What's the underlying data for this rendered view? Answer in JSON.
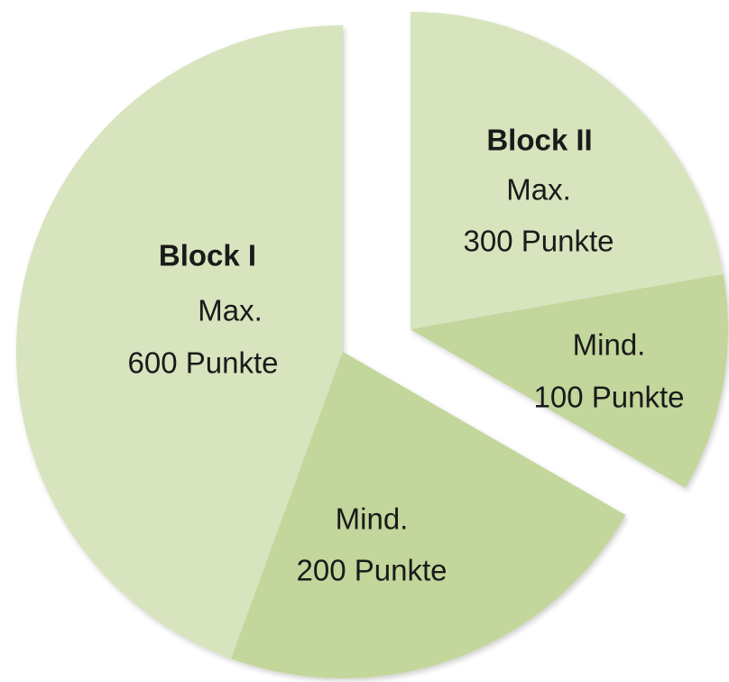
{
  "blocks": [
    {
      "title": "Block I",
      "max_label": "Max.",
      "max_points": "600 Punkte",
      "min_label": "Mind.",
      "min_points": "200 Punkte"
    },
    {
      "title": "Block II",
      "max_label": "Max.",
      "max_points": "300 Punkte",
      "min_label": "Mind.",
      "min_points": "100 Punkte"
    }
  ]
}
